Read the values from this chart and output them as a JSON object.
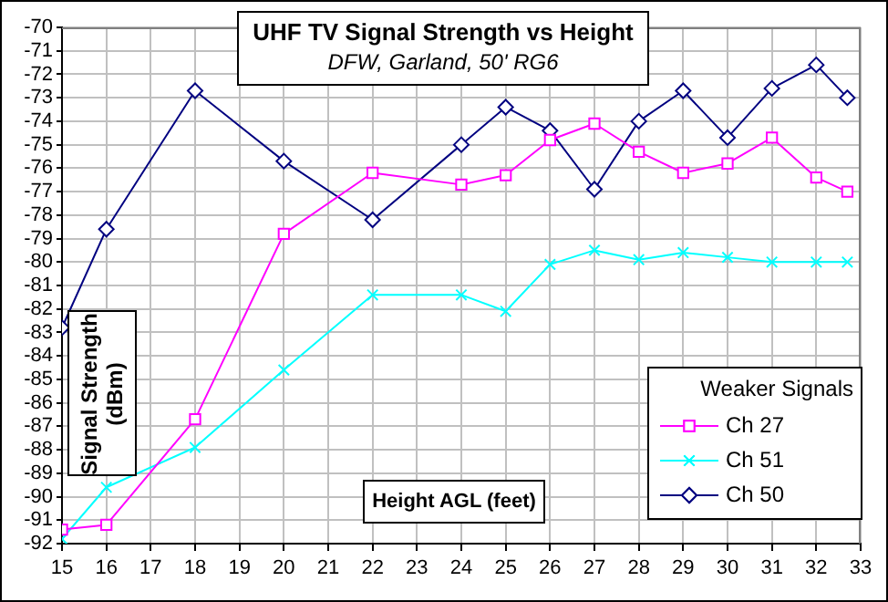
{
  "chart_data": {
    "type": "line",
    "title": "UHF TV Signal Strength vs Height",
    "subtitle": "DFW, Garland, 50' RG6",
    "xlabel": "Height AGL (feet)",
    "ylabel": "Signal Strength (dBm)",
    "legend_title": "Weaker Signals",
    "x": [
      15,
      16,
      18,
      20,
      22,
      24,
      25,
      26,
      27,
      28,
      29,
      30,
      31,
      32,
      32.7
    ],
    "series": [
      {
        "name": "Ch 27",
        "color": "#ff00ff",
        "marker": "square",
        "values": [
          -91.4,
          -91.2,
          -86.7,
          -78.8,
          -76.2,
          -76.7,
          -76.3,
          -74.8,
          -74.1,
          -75.3,
          -76.2,
          -75.8,
          -74.7,
          -76.4,
          -77.0
        ]
      },
      {
        "name": "Ch 51",
        "color": "#00ffff",
        "marker": "cross",
        "values": [
          -91.8,
          -89.6,
          -87.9,
          -84.6,
          -81.4,
          -81.4,
          -82.1,
          -80.1,
          -79.5,
          -79.9,
          -79.6,
          -79.8,
          -80.0,
          -80.0,
          -80.0
        ]
      },
      {
        "name": "Ch 50",
        "color": "#000080",
        "marker": "diamond",
        "values": [
          -82.8,
          -78.6,
          -72.7,
          -75.7,
          -78.2,
          -75.0,
          -73.4,
          -74.4,
          -76.9,
          -74.0,
          -72.7,
          -74.7,
          -72.6,
          -71.6,
          -73.0
        ]
      }
    ],
    "xlim": [
      15,
      33
    ],
    "xticks": [
      15,
      16,
      17,
      18,
      19,
      20,
      21,
      22,
      23,
      24,
      25,
      26,
      27,
      28,
      29,
      30,
      31,
      32,
      33
    ],
    "ylim": [
      -92,
      -70
    ],
    "yticks": [
      -92,
      -91,
      -90,
      -89,
      -88,
      -87,
      -86,
      -85,
      -84,
      -83,
      -82,
      -81,
      -80,
      -79,
      -78,
      -77,
      -76,
      -75,
      -74,
      -73,
      -72,
      -71,
      -70
    ],
    "grid": true,
    "legend": "bottom right",
    "line_style": "solid"
  }
}
